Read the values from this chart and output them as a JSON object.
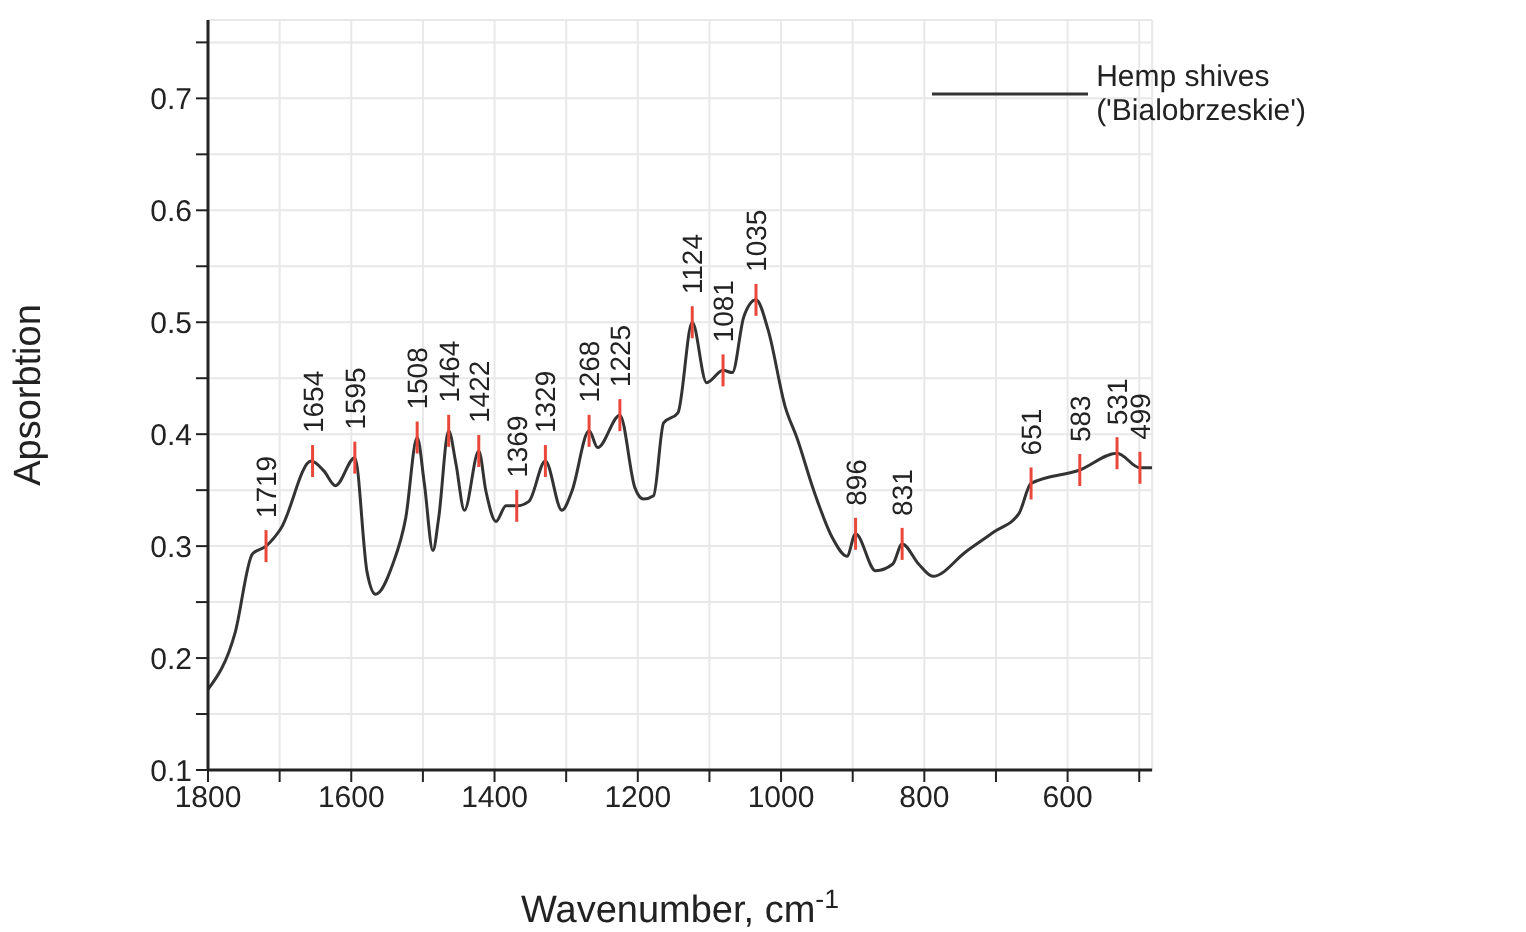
{
  "chart_data": {
    "type": "line",
    "xlabel": "Wavenumber, cm$^{-1}$",
    "ylabel": "Apsorbtion",
    "x": [
      1800,
      1762,
      1738,
      1719,
      1698,
      1656,
      1638,
      1622,
      1595,
      1578,
      1566,
      1542,
      1524,
      1508,
      1498,
      1486,
      1478,
      1464,
      1454,
      1442,
      1422,
      1412,
      1398,
      1384,
      1369,
      1352,
      1329,
      1306,
      1292,
      1268,
      1256,
      1225,
      1204,
      1192,
      1178,
      1164,
      1144,
      1124,
      1104,
      1081,
      1068,
      1052,
      1035,
      1018,
      994,
      978,
      954,
      928,
      908,
      896,
      868,
      844,
      831,
      808,
      788,
      742,
      702,
      668,
      651,
      583,
      531,
      499,
      482
    ],
    "series": [
      {
        "name": "Hemp shives ('Bialobrzeskie')",
        "color": "#333333",
        "values": [
          0.172,
          0.223,
          0.293,
          0.3,
          0.316,
          0.376,
          0.367,
          0.354,
          0.379,
          0.277,
          0.257,
          0.284,
          0.325,
          0.397,
          0.356,
          0.296,
          0.325,
          0.403,
          0.374,
          0.332,
          0.385,
          0.349,
          0.322,
          0.336,
          0.336,
          0.34,
          0.376,
          0.332,
          0.349,
          0.403,
          0.388,
          0.417,
          0.352,
          0.342,
          0.345,
          0.41,
          0.419,
          0.5,
          0.446,
          0.457,
          0.455,
          0.505,
          0.52,
          0.493,
          0.424,
          0.397,
          0.349,
          0.307,
          0.291,
          0.311,
          0.278,
          0.284,
          0.302,
          0.284,
          0.273,
          0.295,
          0.313,
          0.329,
          0.356,
          0.368,
          0.383,
          0.37,
          0.37
        ]
      }
    ],
    "xlim": [
      1800,
      482
    ],
    "xticks": [
      1800,
      {
        "value": 1700,
        "label": null
      },
      1600,
      {
        "value": 1500,
        "label": null
      },
      1400,
      {
        "value": 1300,
        "label": null
      },
      1200,
      {
        "value": 1100,
        "label": null
      },
      1000,
      {
        "value": 900,
        "label": null
      },
      800,
      {
        "value": 700,
        "label": null
      },
      600,
      {
        "value": 500,
        "label": null
      }
    ],
    "ylim": [
      0.1,
      0.77
    ],
    "yticks": [
      0.1,
      {
        "value": 0.15,
        "label": null
      },
      0.2,
      {
        "value": 0.25,
        "label": null
      },
      0.3,
      {
        "value": 0.35,
        "label": null
      },
      0.4,
      {
        "value": 0.45,
        "label": null
      },
      0.5,
      {
        "value": 0.55,
        "label": null
      },
      0.6,
      {
        "value": 0.65,
        "label": null
      },
      0.7,
      {
        "value": 0.75,
        "label": null
      }
    ],
    "grid": true,
    "legend": "top right",
    "marker": "none",
    "line_style": "solid",
    "annotations": [
      {
        "text": "1719",
        "x": 1719,
        "y": 0.3
      },
      {
        "text": "1654",
        "x": 1654,
        "y": 0.376
      },
      {
        "text": "1595",
        "x": 1595,
        "y": 0.379
      },
      {
        "text": "1508",
        "x": 1508,
        "y": 0.397
      },
      {
        "text": "1464",
        "x": 1464,
        "y": 0.403
      },
      {
        "text": "1422",
        "x": 1422,
        "y": 0.385
      },
      {
        "text": "1369",
        "x": 1369,
        "y": 0.336
      },
      {
        "text": "1329",
        "x": 1329,
        "y": 0.376
      },
      {
        "text": "1268",
        "x": 1268,
        "y": 0.403
      },
      {
        "text": "1225",
        "x": 1225,
        "y": 0.417
      },
      {
        "text": "1124",
        "x": 1124,
        "y": 0.5
      },
      {
        "text": "1081",
        "x": 1081,
        "y": 0.457
      },
      {
        "text": "1035",
        "x": 1035,
        "y": 0.52
      },
      {
        "text": "896",
        "x": 896,
        "y": 0.311
      },
      {
        "text": "831",
        "x": 831,
        "y": 0.302
      },
      {
        "text": "651",
        "x": 651,
        "y": 0.356
      },
      {
        "text": "583",
        "x": 583,
        "y": 0.368
      },
      {
        "text": "531",
        "x": 531,
        "y": 0.383
      },
      {
        "text": "499",
        "x": 499,
        "y": 0.37
      }
    ]
  }
}
